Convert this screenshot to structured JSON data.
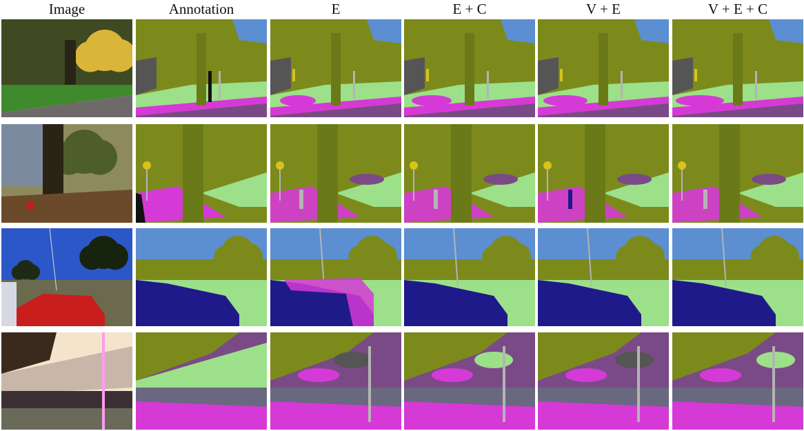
{
  "columns": [
    "Image",
    "Annotation",
    "E",
    "E + C",
    "V + E",
    "V + E + C"
  ],
  "legend_colors": {
    "vegetation": "#7c8a1c",
    "terrain": "#9ce08a",
    "sidewalk": "#d63ad6",
    "road": "#7a4a86",
    "sky": "#5b8fd2",
    "car": "#1f1a8a",
    "pole": "#b4b4b4",
    "sign": "#d9c21c",
    "building": "#555555"
  }
}
